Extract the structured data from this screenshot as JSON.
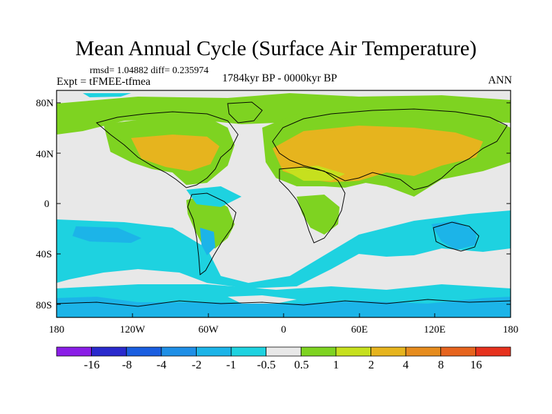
{
  "title": "Mean Annual Cycle (Surface Air Temperature)",
  "stats_text": "rmsd= 1.04882 diff= 0.235974",
  "period_text": "1784kyr BP - 0000kyr BP",
  "experiment_text": "Expt = tFMEE-tfmea",
  "season_text": "ANN",
  "latitude_labels": [
    "80N",
    "40N",
    "0",
    "40S",
    "80S"
  ],
  "longitude_labels": [
    "180",
    "120W",
    "60W",
    "0",
    "60E",
    "120E",
    "180"
  ],
  "colorbar": {
    "labels": [
      "-16",
      "-8",
      "-4",
      "-2",
      "-1",
      "-0.5",
      "0.5",
      "1",
      "2",
      "4",
      "8",
      "16"
    ],
    "colors": [
      "#8a1ee6",
      "#2a2acd",
      "#1a5ee0",
      "#1f8fe6",
      "#1cb4e8",
      "#1ed2e0",
      "#e8e8e8",
      "#7ed321",
      "#c6e01e",
      "#e6b41e",
      "#e68c1e",
      "#e6641e",
      "#e6321e"
    ]
  },
  "palette": {
    "neutral": "#e8e8e8",
    "cyan": "#1ed2e0",
    "lightblue": "#1cb4e8",
    "green": "#7ed321",
    "yellowgreen": "#c6e01e",
    "orange": "#e6b41e",
    "coast": "#000000"
  }
}
